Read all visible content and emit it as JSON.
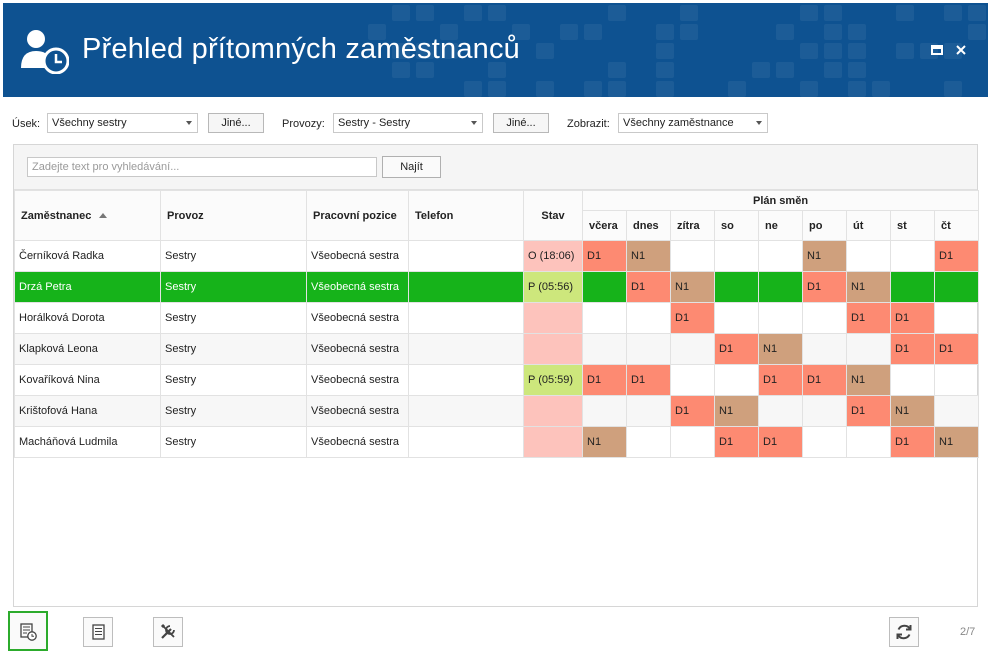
{
  "window": {
    "title": "Přehled přítomných zaměstnanců"
  },
  "filters": {
    "usek_label": "Úsek:",
    "usek_value": "Všechny sestry",
    "usek_button": "Jiné...",
    "provozy_label": "Provozy:",
    "provozy_value": "Sestry - Sestry",
    "provozy_button": "Jiné...",
    "zobrazit_label": "Zobrazit:",
    "zobrazit_value": "Všechny zaměstnance"
  },
  "search": {
    "placeholder": "Zadejte text pro vyhledávání...",
    "button": "Najít"
  },
  "table": {
    "headers": {
      "employee": "Zaměstnanec",
      "provoz": "Provoz",
      "position": "Pracovní pozice",
      "phone": "Telefon",
      "state": "Stav",
      "plan": "Plán směn"
    },
    "days": [
      "včera",
      "dnes",
      "zítra",
      "so",
      "ne",
      "po",
      "út",
      "st",
      "čt"
    ],
    "rows": [
      {
        "name": "Černíková Radka",
        "provoz": "Sestry",
        "position": "Všeobecná sestra",
        "phone": "",
        "state": "O (18:06)",
        "state_type": "o",
        "shifts": [
          "D1",
          "N1",
          "",
          "",
          "",
          "N1",
          "",
          "",
          "D1"
        ]
      },
      {
        "name": "Drzá Petra",
        "provoz": "Sestry",
        "position": "Všeobecná sestra",
        "phone": "",
        "state": "P (05:56)",
        "state_type": "p",
        "selected": true,
        "shifts": [
          "",
          "D1",
          "N1",
          "",
          "",
          "D1",
          "N1",
          "",
          ""
        ]
      },
      {
        "name": "Horálková Dorota",
        "provoz": "Sestry",
        "position": "Všeobecná sestra",
        "phone": "",
        "state": "",
        "state_type": "empty",
        "shifts": [
          "",
          "",
          "D1",
          "",
          "",
          "",
          "D1",
          "D1",
          ""
        ]
      },
      {
        "name": "Klapková Leona",
        "provoz": "Sestry",
        "position": "Všeobecná sestra",
        "phone": "",
        "state": "",
        "state_type": "empty",
        "shifts": [
          "",
          "",
          "",
          "D1",
          "N1",
          "",
          "",
          "D1",
          "D1"
        ]
      },
      {
        "name": "Kovaříková Nina",
        "provoz": "Sestry",
        "position": "Všeobecná sestra",
        "phone": "",
        "state": "P (05:59)",
        "state_type": "p",
        "shifts": [
          "D1",
          "D1",
          "",
          "",
          "D1",
          "D1",
          "N1",
          "",
          ""
        ]
      },
      {
        "name": "Krištofová Hana",
        "provoz": "Sestry",
        "position": "Všeobecná sestra",
        "phone": "",
        "state": "",
        "state_type": "empty",
        "shifts": [
          "",
          "",
          "D1",
          "N1",
          "",
          "",
          "D1",
          "N1",
          ""
        ]
      },
      {
        "name": "Macháňová Ludmila",
        "provoz": "Sestry",
        "position": "Všeobecná sestra",
        "phone": "",
        "state": "",
        "state_type": "empty",
        "shifts": [
          "N1",
          "",
          "",
          "D1",
          "D1",
          "",
          "",
          "D1",
          "N1"
        ]
      }
    ]
  },
  "footer": {
    "page": "2/7"
  },
  "colors": {
    "titlebar": "#0e5291",
    "selected_row": "#16b31a",
    "shift_d1": "#fd8a72",
    "shift_n1": "#cfa07d",
    "state_present": "#cde77c",
    "state_absent": "#fdc3bc"
  }
}
